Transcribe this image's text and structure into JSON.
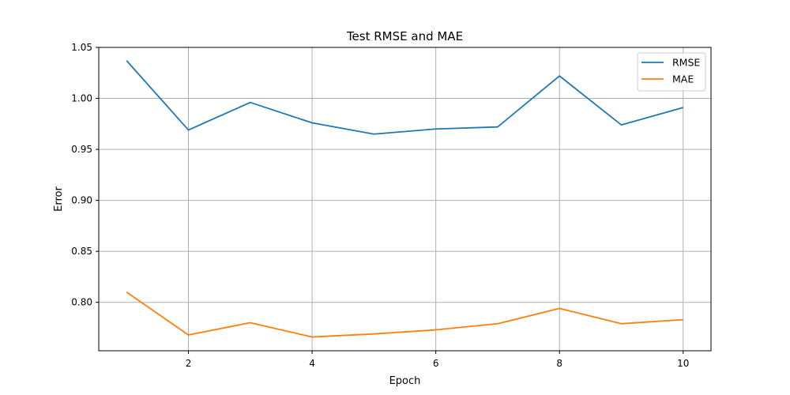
{
  "chart_data": {
    "type": "line",
    "title": "Test RMSE and MAE",
    "xlabel": "Epoch",
    "ylabel": "Error",
    "x": [
      1,
      2,
      3,
      4,
      5,
      6,
      7,
      8,
      9,
      10
    ],
    "xlim": [
      0.55,
      10.45
    ],
    "ylim": [
      0.7525,
      1.05
    ],
    "xticks": [
      2,
      4,
      6,
      8,
      10
    ],
    "xtick_labels": [
      "2",
      "4",
      "6",
      "8",
      "10"
    ],
    "yticks": [
      0.8,
      0.85,
      0.9,
      0.95,
      1.0,
      1.05
    ],
    "ytick_labels": [
      "0.80",
      "0.85",
      "0.90",
      "0.95",
      "1.00",
      "1.05"
    ],
    "grid": true,
    "legend_position": "top-right",
    "series": [
      {
        "name": "RMSE",
        "color": "#1f77b4",
        "values": [
          1.037,
          0.969,
          0.996,
          0.976,
          0.965,
          0.97,
          0.972,
          1.022,
          0.974,
          0.991
        ]
      },
      {
        "name": "MAE",
        "color": "#ff7f0e",
        "values": [
          0.81,
          0.768,
          0.78,
          0.766,
          0.769,
          0.773,
          0.779,
          0.794,
          0.779,
          0.783
        ]
      }
    ]
  }
}
